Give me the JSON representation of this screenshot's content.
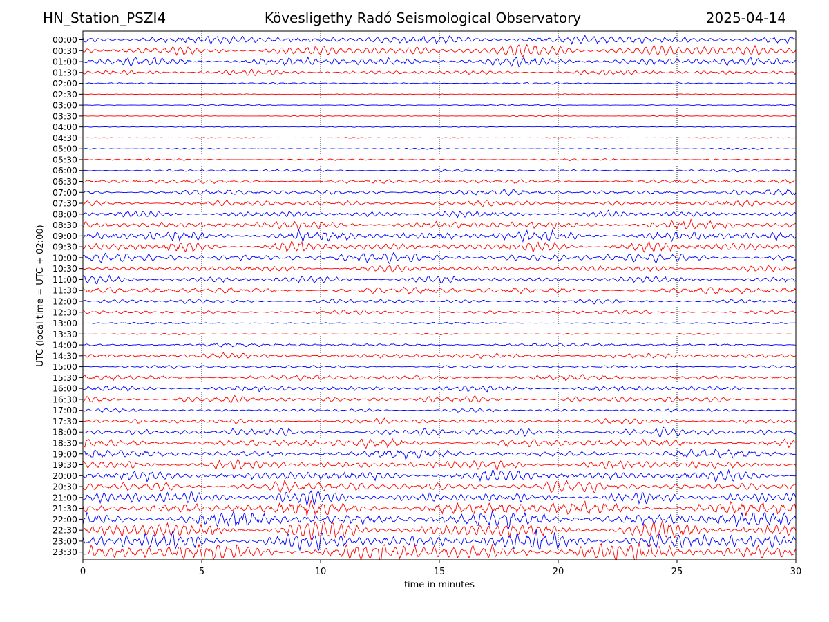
{
  "header": {
    "station": "HN_Station_PSZI4",
    "observatory": "Kövesligethy Radó Seismological Observatory",
    "date": "2025-04-14"
  },
  "chart_data": {
    "type": "line",
    "title": "Kövesligethy Radó Seismological Observatory",
    "xlabel": "time in minutes",
    "ylabel": "UTC (local time = UTC + 02:00)",
    "xlim": [
      0,
      30
    ],
    "x_ticks": [
      "0",
      "5",
      "10",
      "15",
      "20",
      "25",
      "30"
    ],
    "grid": "vertical dotted lines at 5-minute intervals",
    "series_colors": [
      "#0000ff",
      "#ff0000"
    ],
    "rows": [
      {
        "label": "00:00",
        "amplitude": 0.9
      },
      {
        "label": "00:30",
        "amplitude": 0.9
      },
      {
        "label": "01:00",
        "amplitude": 0.75
      },
      {
        "label": "01:30",
        "amplitude": 0.45
      },
      {
        "label": "02:00",
        "amplitude": 0.15
      },
      {
        "label": "02:30",
        "amplitude": 0.08
      },
      {
        "label": "03:00",
        "amplitude": 0.1
      },
      {
        "label": "03:30",
        "amplitude": 0.08
      },
      {
        "label": "04:00",
        "amplitude": 0.08
      },
      {
        "label": "04:30",
        "amplitude": 0.08
      },
      {
        "label": "05:00",
        "amplitude": 0.12
      },
      {
        "label": "05:30",
        "amplitude": 0.15
      },
      {
        "label": "06:00",
        "amplitude": 0.22
      },
      {
        "label": "06:30",
        "amplitude": 0.4
      },
      {
        "label": "07:00",
        "amplitude": 0.5
      },
      {
        "label": "07:30",
        "amplitude": 0.5
      },
      {
        "label": "08:00",
        "amplitude": 0.6
      },
      {
        "label": "08:30",
        "amplitude": 0.75
      },
      {
        "label": "09:00",
        "amplitude": 0.9
      },
      {
        "label": "09:30",
        "amplitude": 0.9
      },
      {
        "label": "10:00",
        "amplitude": 0.75
      },
      {
        "label": "10:30",
        "amplitude": 0.55
      },
      {
        "label": "11:00",
        "amplitude": 0.6
      },
      {
        "label": "11:30",
        "amplitude": 0.6
      },
      {
        "label": "12:00",
        "amplitude": 0.4
      },
      {
        "label": "12:30",
        "amplitude": 0.35
      },
      {
        "label": "13:00",
        "amplitude": 0.15
      },
      {
        "label": "13:30",
        "amplitude": 0.12
      },
      {
        "label": "14:00",
        "amplitude": 0.3
      },
      {
        "label": "14:30",
        "amplitude": 0.45
      },
      {
        "label": "15:00",
        "amplitude": 0.3
      },
      {
        "label": "15:30",
        "amplitude": 0.5
      },
      {
        "label": "16:00",
        "amplitude": 0.5
      },
      {
        "label": "16:30",
        "amplitude": 0.55
      },
      {
        "label": "17:00",
        "amplitude": 0.3
      },
      {
        "label": "17:30",
        "amplitude": 0.45
      },
      {
        "label": "18:00",
        "amplitude": 0.7
      },
      {
        "label": "18:30",
        "amplitude": 0.75
      },
      {
        "label": "19:00",
        "amplitude": 0.75
      },
      {
        "label": "19:30",
        "amplitude": 0.85
      },
      {
        "label": "20:00",
        "amplitude": 0.95
      },
      {
        "label": "20:30",
        "amplitude": 1.0
      },
      {
        "label": "21:00",
        "amplitude": 1.1
      },
      {
        "label": "21:30",
        "amplitude": 1.2
      },
      {
        "label": "22:00",
        "amplitude": 1.3
      },
      {
        "label": "22:30",
        "amplitude": 1.4
      },
      {
        "label": "23:00",
        "amplitude": 1.5
      },
      {
        "label": "23:30",
        "amplitude": 1.6
      }
    ]
  }
}
